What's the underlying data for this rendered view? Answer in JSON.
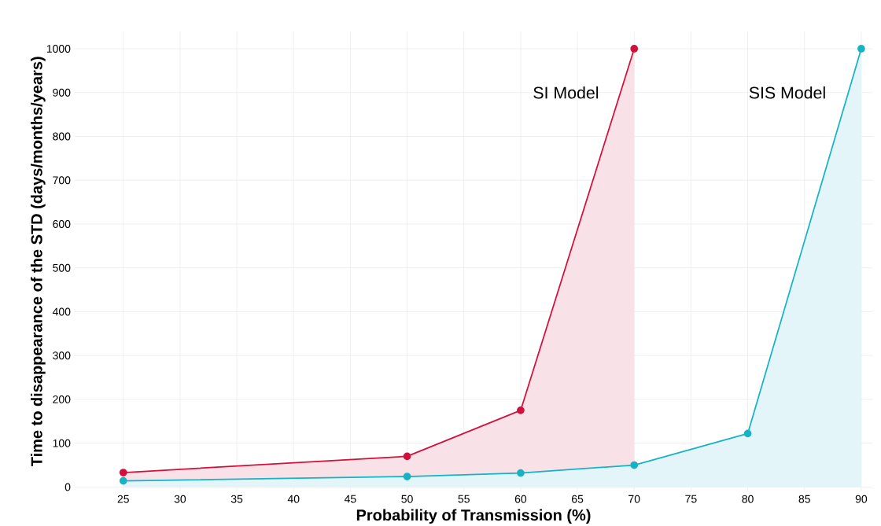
{
  "chart_data": {
    "type": "area",
    "xlabel": "Probability of Transmission (%)",
    "ylabel": "Time to disappearance of the STD (days/months/years)",
    "series": [
      {
        "name": "SI Model",
        "color": "#d1103b",
        "x": [
          25,
          50,
          60,
          70
        ],
        "values": [
          33,
          70,
          175,
          1000
        ]
      },
      {
        "name": "SIS Model",
        "color": "#16b2c6",
        "x": [
          25,
          50,
          60,
          70,
          80,
          90
        ],
        "values": [
          14,
          24,
          32,
          50,
          122,
          1000
        ]
      }
    ],
    "xlim": [
      20.7,
      91
    ],
    "ylim": [
      -10,
      1040
    ],
    "xticks": [
      25,
      30,
      35,
      40,
      45,
      50,
      55,
      60,
      65,
      70,
      75,
      80,
      85,
      90
    ],
    "yticks": [
      0,
      100,
      200,
      300,
      400,
      500,
      600,
      700,
      800,
      900,
      1000
    ],
    "grid": true,
    "marker": "circle"
  }
}
